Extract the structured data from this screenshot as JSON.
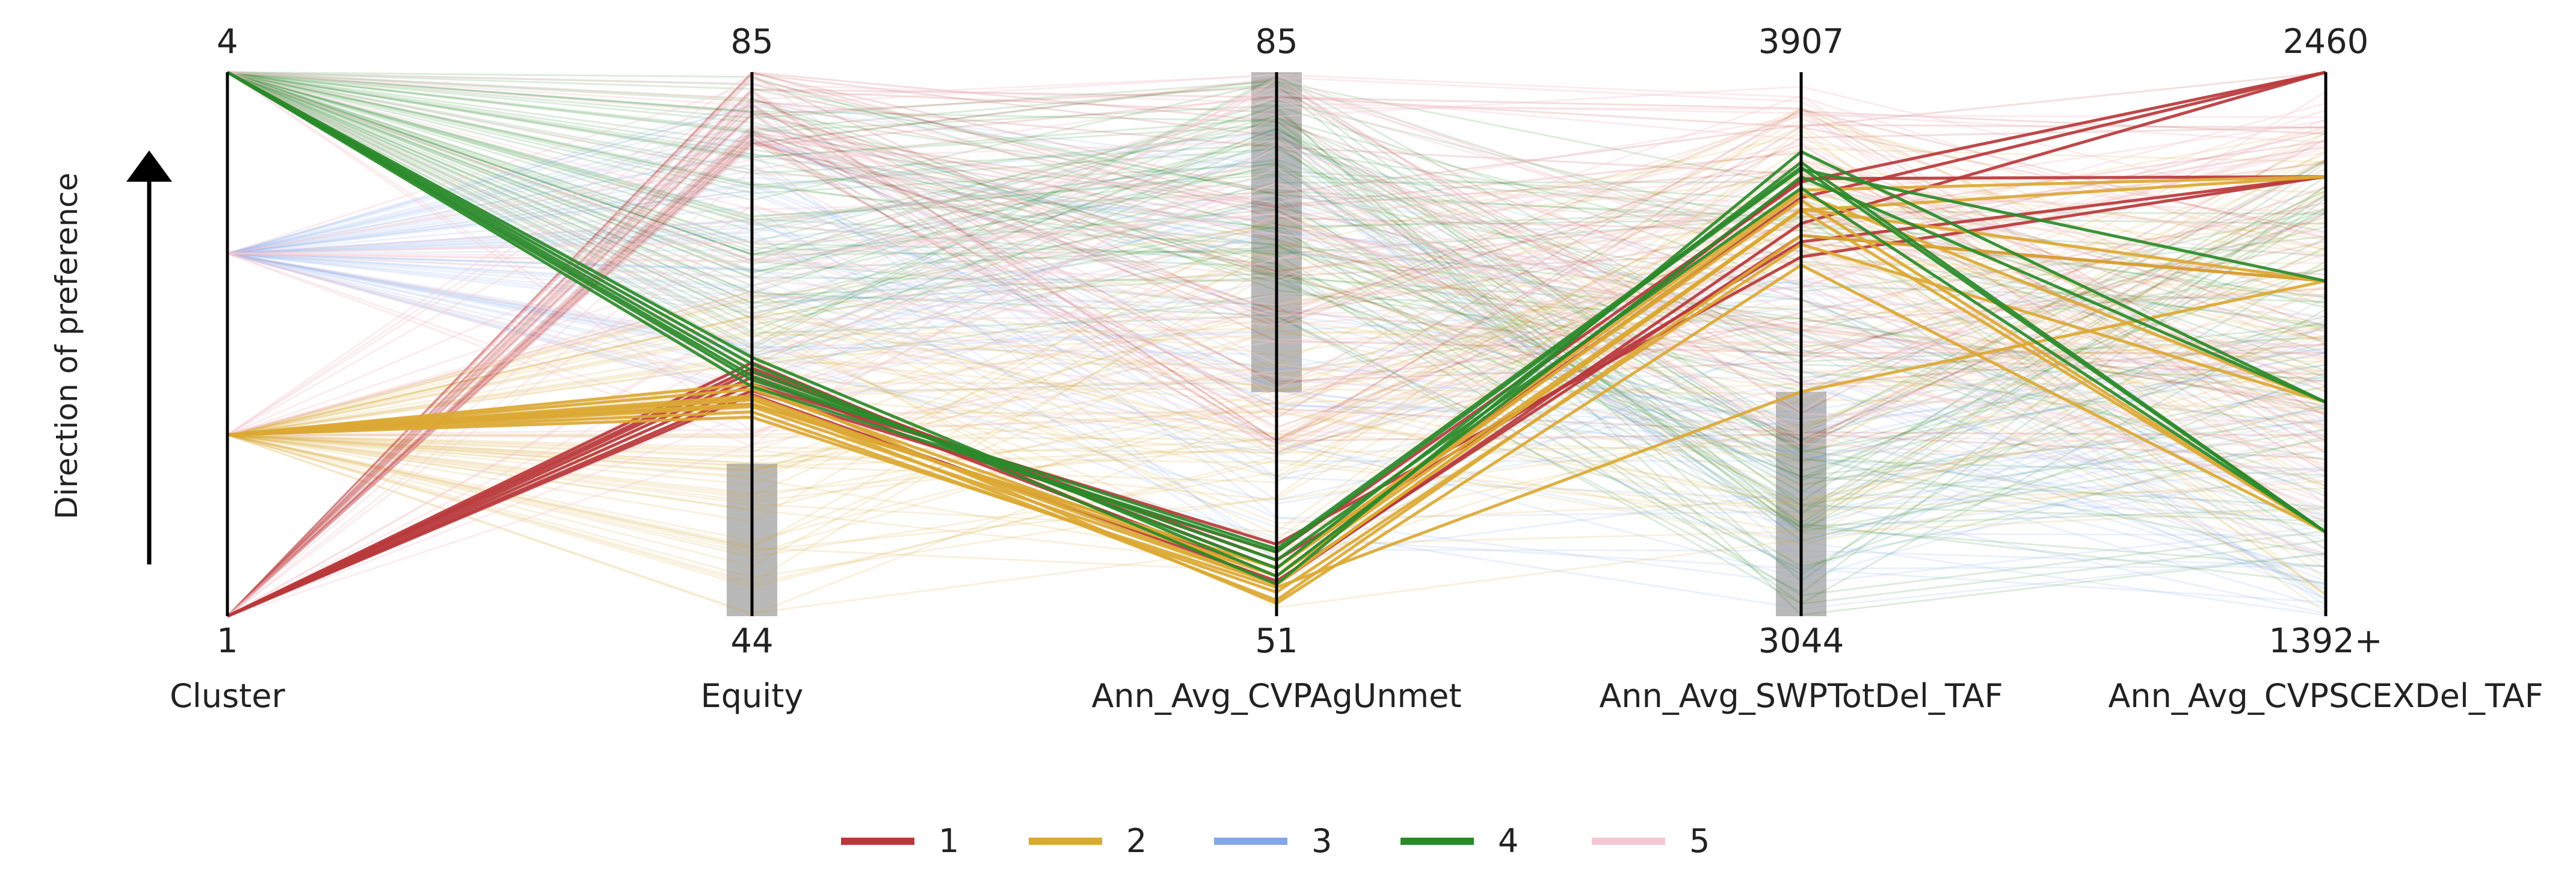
{
  "chart_data": {
    "type": "parallel_coordinates",
    "preference_label": "Direction of preference",
    "axes": [
      {
        "name": "Cluster",
        "top": "4",
        "bottom": "1",
        "min": 1,
        "max": 4,
        "brush": null
      },
      {
        "name": "Equity",
        "top": "85",
        "bottom": "44",
        "min": 44,
        "max": 85,
        "brush": [
          44,
          55.5
        ]
      },
      {
        "name": "Ann_Avg_CVPAgUnmet",
        "top": "85",
        "bottom": "51",
        "min": 51,
        "max": 85,
        "brush": [
          65,
          85
        ]
      },
      {
        "name": "Ann_Avg_SWPTotDel_TAF",
        "top": "3907",
        "bottom": "3044",
        "min": 3044,
        "max": 3907,
        "brush": [
          3044,
          3400
        ]
      },
      {
        "name": "Ann_Avg_CVPSCEXDel_TAF",
        "top": "2460",
        "bottom": "1392+",
        "min": 1392,
        "max": 2460,
        "brush": null
      }
    ],
    "legend": {
      "placement": "bottom-center",
      "entries": [
        {
          "label": "1",
          "color": "#b8383b"
        },
        {
          "label": "2",
          "color": "#dba833"
        },
        {
          "label": "3",
          "color": "#84a6ea"
        },
        {
          "label": "4",
          "color": "#2a8a2a"
        },
        {
          "label": "5",
          "color": "#f4c8d2"
        }
      ]
    },
    "highlighted_series": [
      {
        "cluster": "1",
        "lines": [
          [
            1,
            63.1,
            53.0,
            3667,
            2460
          ],
          [
            1,
            62.7,
            54.0,
            3708,
            2460
          ],
          [
            1,
            61.0,
            55.0,
            3733,
            2460
          ],
          [
            1,
            62.0,
            53.5,
            3738,
            2255
          ],
          [
            1,
            62.4,
            54.5,
            3638,
            2255
          ],
          [
            1,
            61.5,
            55.5,
            3614,
            2255
          ],
          [
            1,
            60.7,
            53.2,
            3648,
            2050
          ]
        ]
      },
      {
        "cluster": "2",
        "lines": [
          [
            2,
            60.0,
            54.0,
            3720,
            2255
          ],
          [
            2,
            61.1,
            53.5,
            3688,
            2255
          ],
          [
            2,
            60.4,
            52.0,
            3648,
            2050
          ],
          [
            2,
            59.8,
            53.0,
            3690,
            2050
          ],
          [
            2,
            60.3,
            53.5,
            3715,
            1812
          ],
          [
            2,
            59.4,
            52.5,
            3634,
            1812
          ],
          [
            2,
            60.0,
            54.0,
            3704,
            1557
          ],
          [
            2,
            61.5,
            51.8,
            3601,
            1557
          ],
          [
            2,
            59.0,
            52.8,
            3400,
            2050
          ],
          [
            2,
            60.6,
            53.0,
            3688,
            1557
          ]
        ]
      },
      {
        "cluster": "4",
        "lines": [
          [
            4,
            63.0,
            53.0,
            3781,
            1812
          ],
          [
            4,
            62.5,
            54.0,
            3764,
            1557
          ],
          [
            4,
            61.3,
            55.0,
            3753,
            2050
          ],
          [
            4,
            63.5,
            53.5,
            3741,
            1812
          ],
          [
            4,
            62.1,
            54.5,
            3723,
            1557
          ],
          [
            4,
            61.8,
            55.2,
            3756,
            1557
          ]
        ]
      }
    ]
  }
}
